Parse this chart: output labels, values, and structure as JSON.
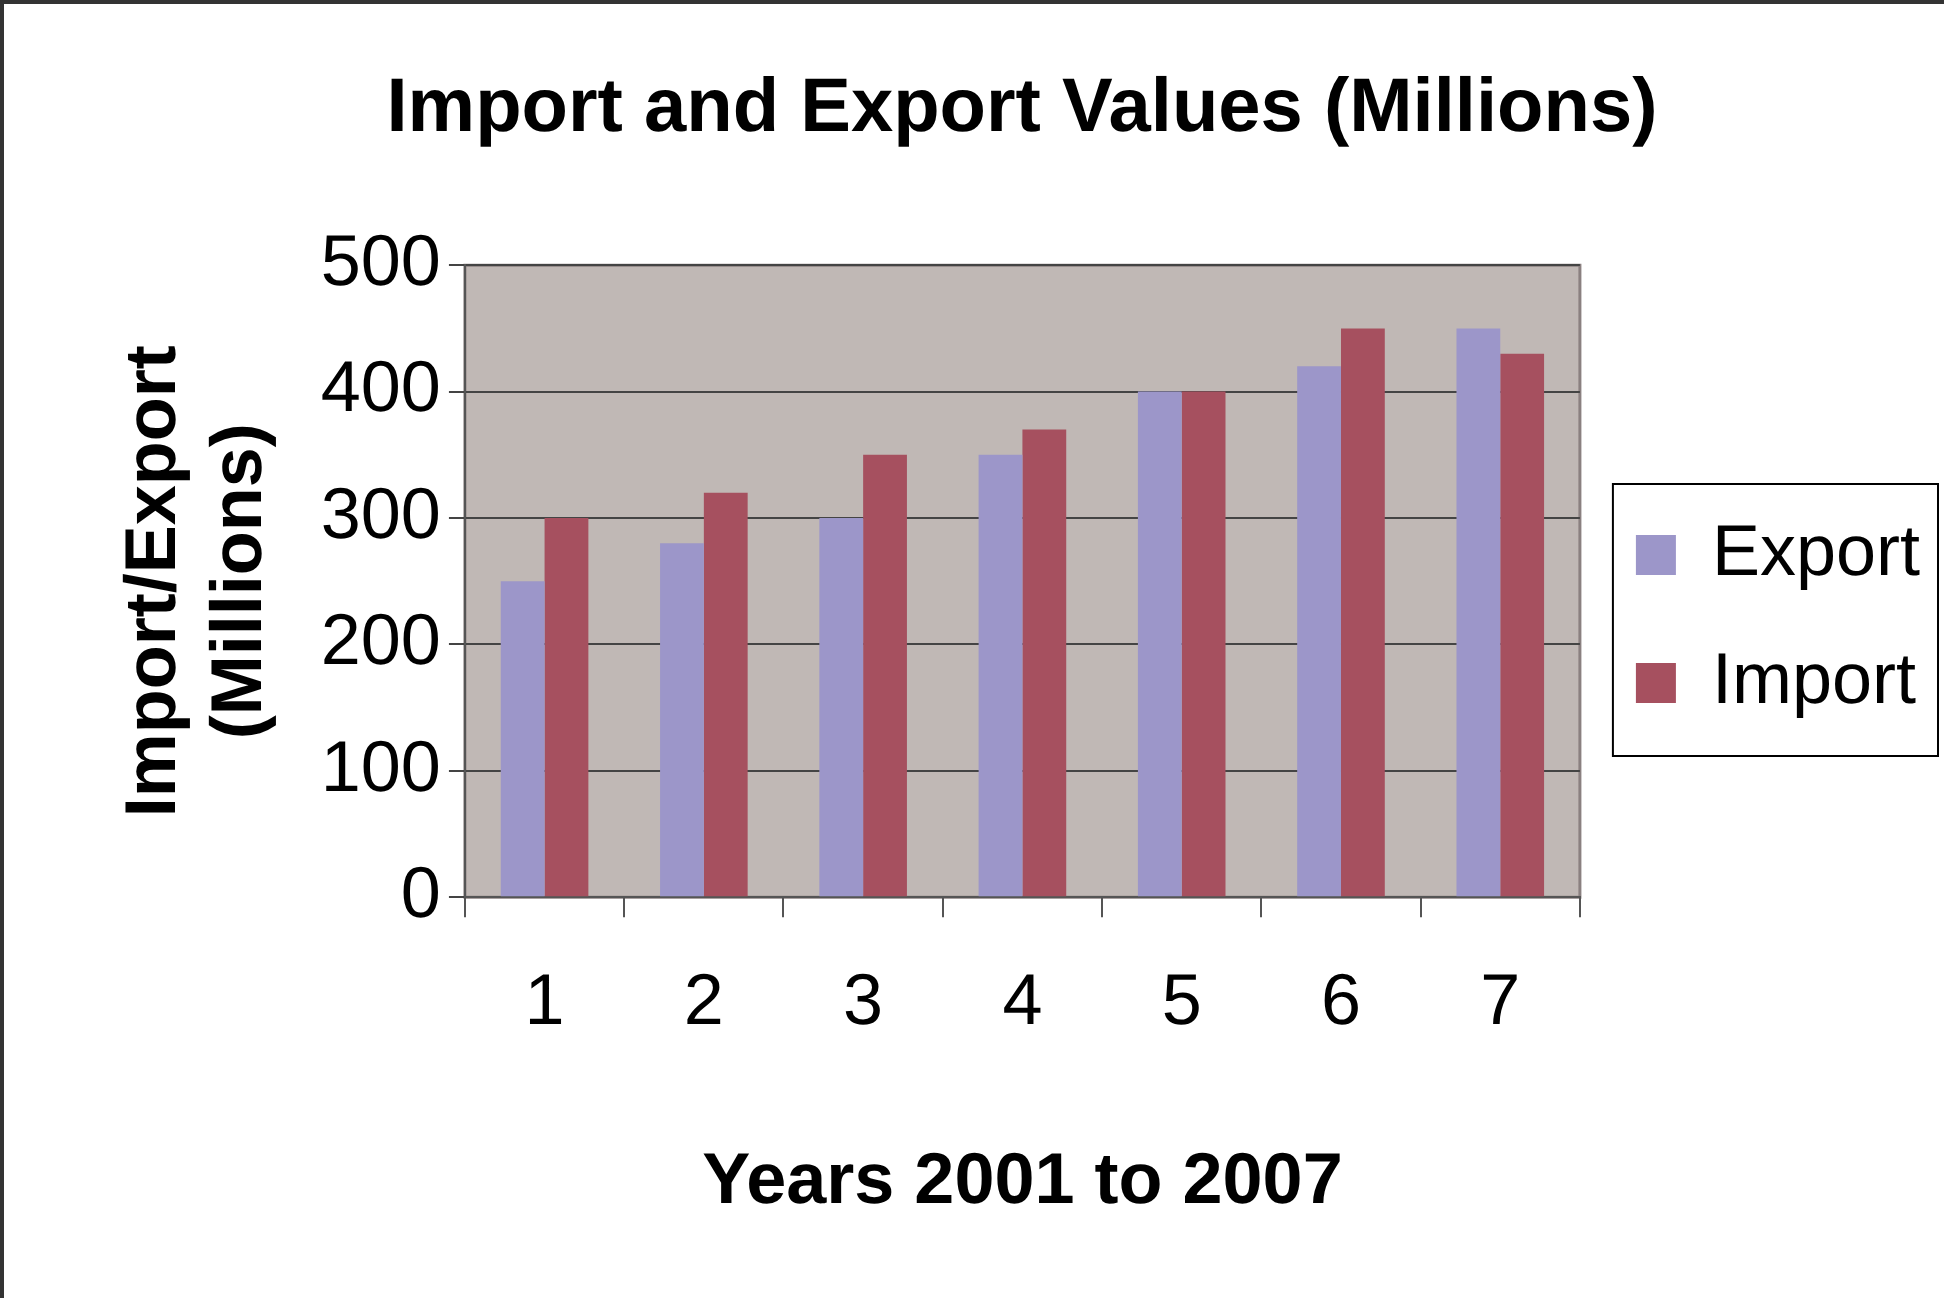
{
  "chart_data": {
    "type": "bar",
    "title": "Import and Export Values (Millions)",
    "xlabel": "Years 2001 to 2007",
    "ylabel": "Import/Export (Millions)",
    "categories": [
      "1",
      "2",
      "3",
      "4",
      "5",
      "6",
      "7"
    ],
    "series": [
      {
        "name": "Export",
        "color": "#9c96c9",
        "values": [
          250,
          280,
          300,
          350,
          400,
          420,
          450
        ]
      },
      {
        "name": "Import",
        "color": "#a6505f",
        "values": [
          300,
          320,
          350,
          370,
          400,
          450,
          430
        ]
      }
    ],
    "ylim": [
      0,
      500
    ],
    "yticks": [
      0,
      100,
      200,
      300,
      400,
      500
    ],
    "grid": "y",
    "legend": "right"
  }
}
